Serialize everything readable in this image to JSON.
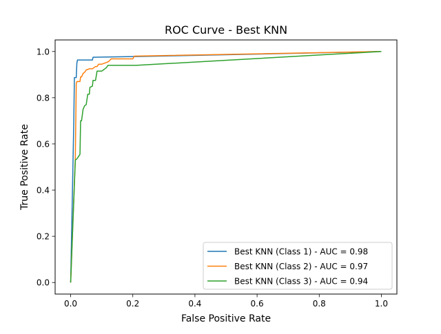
{
  "chart_data": {
    "type": "line",
    "title": "ROC Curve - Best KNN",
    "xlabel": "False Positive Rate",
    "ylabel": "True Positive Rate",
    "xlim": [
      -0.05,
      1.05
    ],
    "ylim": [
      -0.05,
      1.05
    ],
    "xticks": [
      "0.0",
      "0.2",
      "0.4",
      "0.6",
      "0.8",
      "1.0"
    ],
    "yticks": [
      "0.0",
      "0.2",
      "0.4",
      "0.6",
      "0.8",
      "1.0"
    ],
    "grid": false,
    "legend_position": "lower-right",
    "series": [
      {
        "name": "Best KNN (Class 1) - AUC = 0.98",
        "color": "#1f77b4",
        "x": [
          0.0,
          0.01,
          0.012,
          0.018,
          0.02,
          0.022,
          0.07,
          0.072,
          0.2,
          0.21,
          1.0
        ],
        "y": [
          0.0,
          0.69,
          0.887,
          0.887,
          0.95,
          0.963,
          0.963,
          0.975,
          0.978,
          0.978,
          1.0
        ]
      },
      {
        "name": "Best KNN (Class 2) - AUC = 0.97",
        "color": "#ff7f0e",
        "x": [
          0.0,
          0.015,
          0.018,
          0.02,
          0.03,
          0.032,
          0.035,
          0.04,
          0.045,
          0.05,
          0.06,
          0.07,
          0.08,
          0.085,
          0.09,
          0.1,
          0.11,
          0.12,
          0.125,
          0.13,
          0.2,
          0.205,
          1.0
        ],
        "y": [
          0.0,
          0.54,
          0.86,
          0.87,
          0.87,
          0.89,
          0.89,
          0.905,
          0.91,
          0.92,
          0.925,
          0.925,
          0.935,
          0.935,
          0.945,
          0.945,
          0.95,
          0.955,
          0.96,
          0.968,
          0.968,
          0.98,
          1.0
        ]
      },
      {
        "name": "Best KNN (Class 3) - AUC = 0.94",
        "color": "#2ca02c",
        "x": [
          0.0,
          0.015,
          0.02,
          0.025,
          0.03,
          0.032,
          0.035,
          0.04,
          0.045,
          0.05,
          0.055,
          0.06,
          0.062,
          0.07,
          0.072,
          0.08,
          0.085,
          0.1,
          0.105,
          0.11,
          0.115,
          0.12,
          0.21,
          1.0
        ],
        "y": [
          0.0,
          0.53,
          0.535,
          0.545,
          0.555,
          0.7,
          0.7,
          0.75,
          0.765,
          0.77,
          0.815,
          0.815,
          0.845,
          0.85,
          0.875,
          0.875,
          0.915,
          0.915,
          0.92,
          0.925,
          0.93,
          0.94,
          0.94,
          1.0
        ]
      }
    ]
  }
}
